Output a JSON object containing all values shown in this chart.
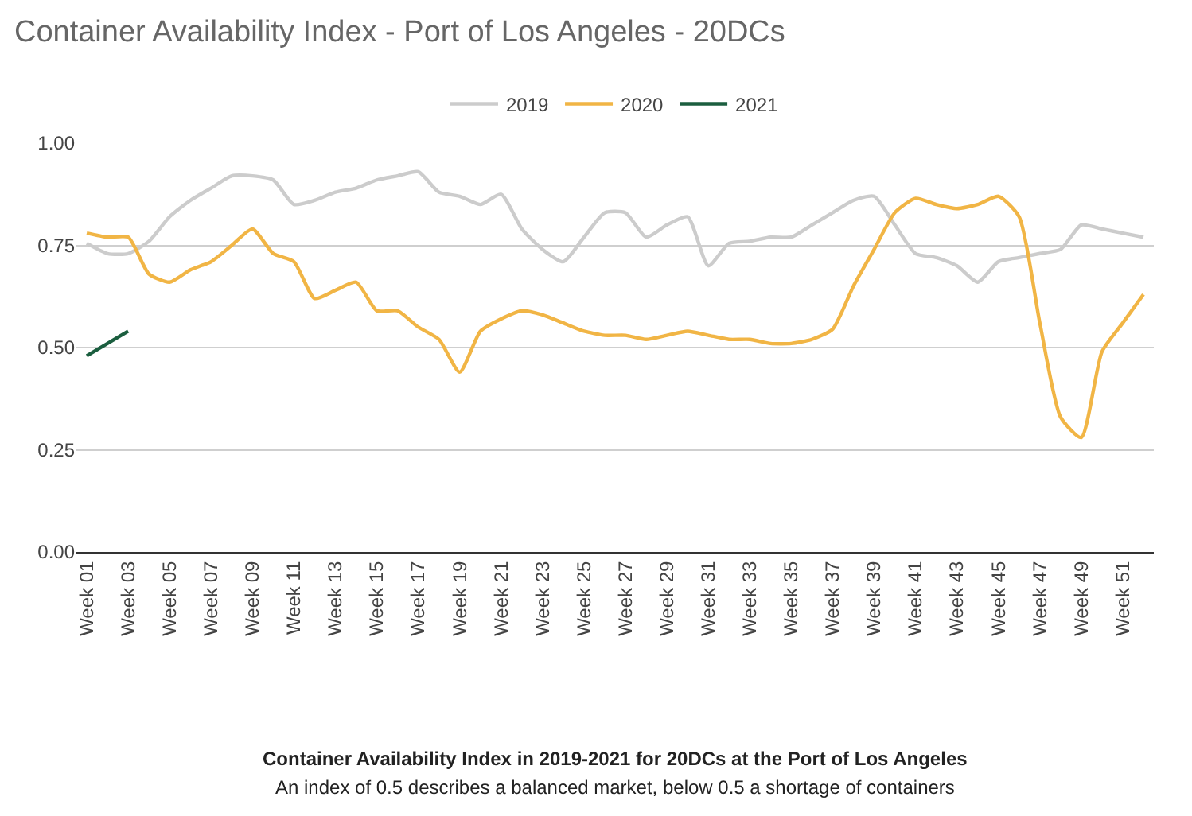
{
  "chart_data": {
    "type": "line",
    "title": "Container Availability Index - Port of Los Angeles - 20DCs",
    "categories": [
      "Week 01",
      null,
      "Week 03",
      null,
      "Week 05",
      null,
      "Week 07",
      null,
      "Week 09",
      null,
      "Week 11",
      null,
      "Week 13",
      null,
      "Week 15",
      null,
      "Week 17",
      null,
      "Week 19",
      null,
      "Week 21",
      null,
      "Week 23",
      null,
      "Week 25",
      null,
      "Week 27",
      null,
      "Week 29",
      null,
      "Week 31",
      null,
      "Week 33",
      null,
      "Week 35",
      null,
      "Week 37",
      null,
      "Week 39",
      null,
      "Week 41",
      null,
      "Week 43",
      null,
      "Week 45",
      null,
      "Week 47",
      null,
      "Week 49",
      null,
      "Week 51",
      null
    ],
    "series": [
      {
        "name": "2019",
        "color": "#cccccc",
        "values": [
          0.755,
          0.73,
          0.73,
          0.76,
          0.82,
          0.86,
          0.89,
          0.92,
          0.92,
          0.91,
          0.85,
          0.86,
          0.88,
          0.89,
          0.91,
          0.92,
          0.93,
          0.88,
          0.87,
          0.85,
          0.875,
          0.79,
          0.74,
          0.71,
          0.77,
          0.83,
          0.83,
          0.77,
          0.8,
          0.82,
          0.7,
          0.755,
          0.76,
          0.77,
          0.77,
          0.8,
          0.83,
          0.86,
          0.87,
          0.8,
          0.73,
          0.72,
          0.7,
          0.66,
          0.71,
          0.72,
          0.73,
          0.74,
          0.8,
          0.79,
          0.78,
          0.77
        ]
      },
      {
        "name": "2020",
        "color": "#f1b545",
        "values": [
          0.78,
          0.77,
          0.77,
          0.68,
          0.66,
          0.69,
          0.71,
          0.75,
          0.79,
          0.73,
          0.71,
          0.62,
          0.64,
          0.66,
          0.59,
          0.59,
          0.55,
          0.52,
          0.44,
          0.54,
          0.57,
          0.59,
          0.58,
          0.56,
          0.54,
          0.53,
          0.53,
          0.52,
          0.53,
          0.54,
          0.53,
          0.52,
          0.52,
          0.51,
          0.51,
          0.52,
          0.545,
          0.65,
          0.74,
          0.83,
          0.865,
          0.85,
          0.84,
          0.85,
          0.87,
          0.82,
          0.56,
          0.33,
          0.28,
          0.49,
          0.56,
          0.63
        ]
      },
      {
        "name": "2021",
        "color": "#1b5e3f",
        "values": [
          0.48,
          0.51,
          0.54,
          null,
          null,
          null,
          null,
          null,
          null,
          null,
          null,
          null,
          null,
          null,
          null,
          null,
          null,
          null,
          null,
          null,
          null,
          null,
          null,
          null,
          null,
          null,
          null,
          null,
          null,
          null,
          null,
          null,
          null,
          null,
          null,
          null,
          null,
          null,
          null,
          null,
          null,
          null,
          null,
          null,
          null,
          null,
          null,
          null,
          null,
          null,
          null,
          null
        ]
      }
    ],
    "ylim": [
      0,
      1
    ],
    "yticks": [
      {
        "value": 0,
        "label": "0.00"
      },
      {
        "value": 0.25,
        "label": "0.25"
      },
      {
        "value": 0.5,
        "label": "0.50"
      },
      {
        "value": 0.75,
        "label": "0.75"
      },
      {
        "value": 1,
        "label": "1.00"
      }
    ],
    "grid": "y",
    "legend": "top",
    "marker": "none",
    "line_style": "solid",
    "annotations": [
      "Container Availability Index in 2019-2021 for 20DCs at the Port of Los Angeles",
      "An index of 0.5 describes a balanced market, below 0.5 a shortage of containers"
    ]
  }
}
